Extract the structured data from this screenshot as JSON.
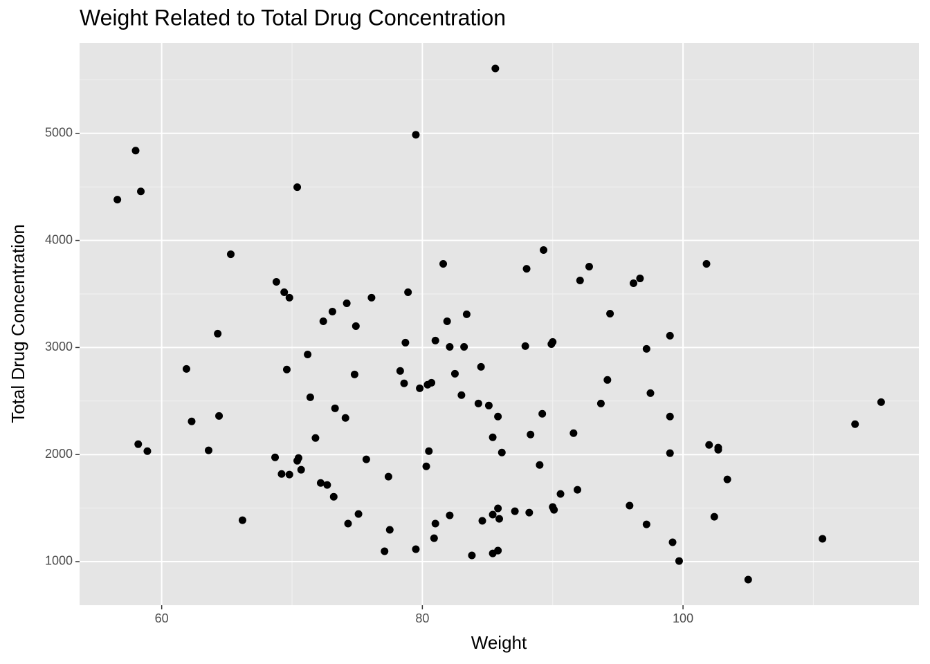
{
  "chart_data": {
    "type": "scatter",
    "title": "Weight Related to Total Drug Concentration",
    "x_label": "Weight",
    "y_label": "Total Drug Concentration",
    "color": "#000000",
    "panel_color": "#e5e5e5",
    "grid": true,
    "minor_grid": true,
    "xlim": [
      53.7,
      118.1
    ],
    "ylim": [
      593,
      5845
    ],
    "xticks": [
      60,
      80,
      100
    ],
    "yticks": [
      1000,
      2000,
      3000,
      4000,
      5000
    ],
    "x": [
      56.6,
      58.0,
      58.4,
      58.2,
      58.9,
      61.9,
      62.3,
      63.6,
      64.3,
      64.4,
      65.3,
      66.2,
      68.7,
      68.8,
      69.2,
      69.4,
      69.6,
      69.8,
      69.8,
      70.4,
      70.4,
      70.5,
      70.7,
      71.2,
      71.4,
      71.8,
      72.2,
      72.4,
      72.7,
      73.1,
      73.2,
      73.3,
      74.1,
      74.2,
      74.3,
      74.9,
      74.8,
      75.1,
      75.7,
      76.1,
      77.1,
      77.4,
      77.5,
      78.3,
      78.6,
      78.7,
      78.9,
      79.5,
      79.5,
      79.8,
      80.3,
      80.4,
      80.5,
      80.7,
      80.9,
      81.0,
      81.0,
      81.6,
      81.9,
      82.1,
      82.1,
      82.5,
      83.0,
      83.2,
      83.4,
      83.8,
      84.3,
      84.5,
      84.6,
      85.1,
      85.4,
      85.4,
      85.4,
      85.6,
      85.8,
      85.8,
      85.8,
      85.9,
      86.1,
      87.1,
      87.9,
      88.0,
      88.2,
      88.3,
      89.0,
      89.2,
      89.3,
      89.9,
      90.0,
      90.0,
      90.1,
      90.6,
      91.6,
      91.9,
      92.1,
      92.8,
      93.7,
      94.2,
      94.4,
      95.9,
      96.2,
      96.7,
      97.2,
      97.2,
      97.5,
      99.0,
      99.0,
      99.0,
      99.2,
      99.7,
      101.8,
      102.0,
      102.4,
      102.7,
      102.7,
      103.4,
      105.0,
      110.7,
      113.2,
      115.2
    ],
    "y": [
      4381,
      4839,
      4458,
      2097,
      2032,
      2800,
      2310,
      2039,
      3129,
      2361,
      3871,
      1387,
      1974,
      3613,
      1819,
      3516,
      2794,
      3465,
      1813,
      4497,
      1942,
      1968,
      1858,
      2935,
      2535,
      2155,
      1735,
      3245,
      1716,
      3335,
      1606,
      2432,
      2342,
      3413,
      1355,
      3200,
      2748,
      1445,
      1955,
      3465,
      1097,
      1794,
      1297,
      2781,
      2665,
      3045,
      3516,
      4987,
      1116,
      2619,
      1890,
      2652,
      2032,
      2671,
      1219,
      1355,
      3065,
      3781,
      3245,
      1432,
      3006,
      2755,
      2555,
      3006,
      3310,
      1058,
      2477,
      2819,
      1381,
      2458,
      2161,
      1439,
      1077,
      5606,
      1497,
      1103,
      2355,
      1400,
      2019,
      1471,
      3013,
      3735,
      1458,
      2187,
      1903,
      2381,
      3910,
      3032,
      3052,
      1510,
      1484,
      1632,
      2200,
      1671,
      3626,
      3755,
      2477,
      2697,
      3316,
      1523,
      3600,
      3645,
      2987,
      1348,
      2574,
      3110,
      2355,
      2013,
      1181,
      1006,
      3781,
      2090,
      1419,
      2065,
      2045,
      1768,
      832,
      1213,
      2284,
      2490
    ]
  }
}
